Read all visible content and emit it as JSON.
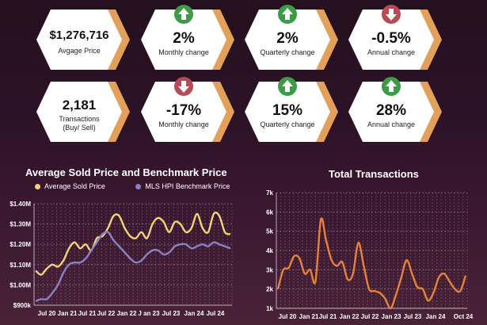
{
  "cards": [
    {
      "value": "$1,276,716",
      "label": "Avgage Price",
      "icon": ""
    },
    {
      "value": "2%",
      "label": "Monthly change",
      "icon": "up-arrow-icon"
    },
    {
      "value": "2%",
      "label": "Quarterly change",
      "icon": "up-arrow-icon"
    },
    {
      "value": "-0.5%",
      "label": "Annual change",
      "icon": "down-arrow-icon"
    },
    {
      "value": "2,181",
      "label": "Transactions\n(Buy/ Sell)",
      "icon": ""
    },
    {
      "value": "-17%",
      "label": "Monthly change",
      "icon": "down-arrow-icon"
    },
    {
      "value": "15%",
      "label": "Quarterly change",
      "icon": "up-arrow-icon"
    },
    {
      "value": "28%",
      "label": "Annual change",
      "icon": "up-arrow-icon"
    }
  ],
  "colors": {
    "card_fill": "#ffffff",
    "card_accent": "#e2a05a",
    "up_icon": "#3d9a47",
    "down_icon": "#b84a55",
    "avg_line": "#f3d27a",
    "hpi_line": "#8a82c4",
    "transactions_line": "#e6823a",
    "grid": "#ffffff"
  },
  "chart_data": [
    {
      "type": "line",
      "title": "Average Sold Price and Benchmark Price",
      "yticks": [
        "$900k",
        "$1.00M",
        "$1.10M",
        "$1.20M",
        "$1.30M",
        "$1.40M"
      ],
      "ylim": [
        900000,
        1400000
      ],
      "xticks": [
        "Jul 20",
        "Jan 21",
        "Jul 21",
        "Jul 22",
        "Jan 22",
        "J an 23",
        "Jul 23",
        "Jan 24",
        "Jul 24"
      ],
      "legend_position": "top",
      "grid": true,
      "series": [
        {
          "name": "Average Sold Price",
          "values": [
            1070000,
            1050000,
            1080000,
            1100000,
            1090000,
            1120000,
            1180000,
            1210000,
            1180000,
            1200000,
            1170000,
            1230000,
            1240000,
            1280000,
            1340000,
            1340000,
            1280000,
            1240000,
            1230000,
            1260000,
            1230000,
            1300000,
            1330000,
            1310000,
            1260000,
            1310000,
            1300000,
            1260000,
            1280000,
            1350000,
            1280000,
            1260000,
            1350000,
            1340000,
            1260000,
            1250000
          ]
        },
        {
          "name": "MLS HPI Benchmark Price",
          "values": [
            920000,
            930000,
            930000,
            960000,
            1000000,
            1060000,
            1100000,
            1110000,
            1110000,
            1130000,
            1170000,
            1210000,
            1250000,
            1260000,
            1220000,
            1190000,
            1160000,
            1130000,
            1110000,
            1120000,
            1150000,
            1170000,
            1170000,
            1150000,
            1160000,
            1190000,
            1200000,
            1200000,
            1180000,
            1190000,
            1200000,
            1190000,
            1210000,
            1200000,
            1190000,
            1180000
          ]
        }
      ]
    },
    {
      "type": "line",
      "title": "Total Transactions",
      "yticks": [
        "1k",
        "2k",
        "3k",
        "4k",
        "5k",
        "6k",
        "7k"
      ],
      "ylim": [
        1000,
        7000
      ],
      "xticks": [
        "Jul 20",
        "Jan 21",
        "Jul 21",
        "Jan 22",
        "Jul 22",
        "Jan 23",
        "Jul 23",
        "Jan 24",
        "Oct 24"
      ],
      "grid": true,
      "series": [
        {
          "name": "",
          "values": [
            2000,
            3000,
            3100,
            3700,
            3600,
            2800,
            3000,
            2400,
            5600,
            4500,
            3500,
            3200,
            3400,
            2500,
            2800,
            4400,
            3200,
            2000,
            1900,
            1800,
            1500,
            1000,
            1700,
            2600,
            3500,
            2800,
            2100,
            2000,
            1400,
            1800,
            2600,
            2800,
            2400,
            2000,
            1900,
            2700
          ]
        }
      ]
    }
  ]
}
